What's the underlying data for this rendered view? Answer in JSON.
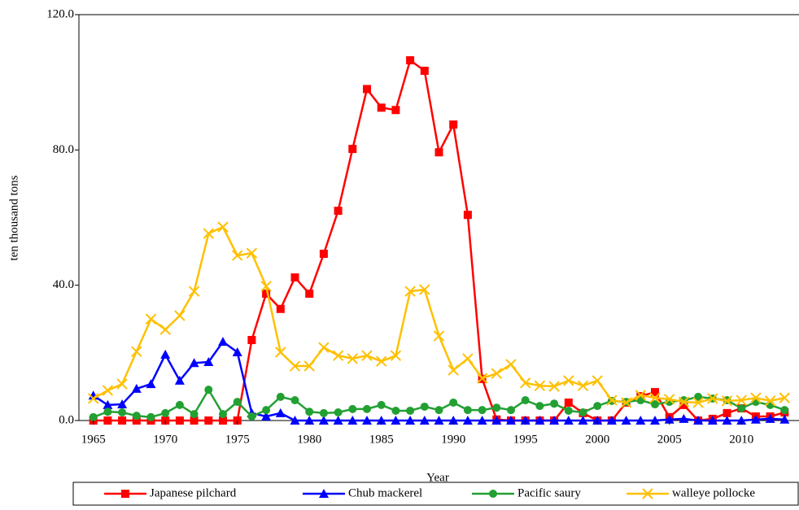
{
  "chart_data": {
    "type": "line",
    "x_label": "Year",
    "y_label": "ten thousand tons",
    "x": [
      1965,
      1966,
      1967,
      1968,
      1969,
      1970,
      1971,
      1972,
      1973,
      1974,
      1975,
      1976,
      1977,
      1978,
      1979,
      1980,
      1981,
      1982,
      1983,
      1984,
      1985,
      1986,
      1987,
      1988,
      1989,
      1990,
      1991,
      1992,
      1993,
      1994,
      1995,
      1996,
      1997,
      1998,
      1999,
      2000,
      2001,
      2002,
      2003,
      2004,
      2005,
      2006,
      2007,
      2008,
      2009,
      2010,
      2011,
      2012,
      2013
    ],
    "xlim": [
      1964,
      2014
    ],
    "xticks": [
      1965,
      1970,
      1975,
      1980,
      1985,
      1990,
      1995,
      2000,
      2005,
      2010
    ],
    "ylim": [
      0,
      120
    ],
    "yticks": [
      {
        "value": 0,
        "label": "0.0"
      },
      {
        "value": 40,
        "label": "40.0"
      },
      {
        "value": 80,
        "label": "80.0"
      },
      {
        "value": 120,
        "label": "120.0"
      }
    ],
    "grid": false,
    "legend": "bottom",
    "series": [
      {
        "name": "Japanese pilchard",
        "color": "#ff0000",
        "marker": "square",
        "values": [
          0,
          0,
          0,
          0,
          0,
          0,
          0,
          0,
          0,
          0,
          0,
          23.8,
          37.5,
          33,
          42.3,
          37.5,
          49.3,
          62,
          80.3,
          98,
          92.5,
          91.8,
          106.5,
          103.4,
          79.3,
          87.5,
          60.8,
          12.3,
          0.3,
          0,
          0,
          0,
          0,
          5.3,
          2.2,
          0,
          0,
          5.3,
          7.2,
          8.4,
          1,
          4.6,
          0,
          0.5,
          2.2,
          3.6,
          1.2,
          1.2,
          2.4
        ]
      },
      {
        "name": "Chub mackerel",
        "color": "#0000ff",
        "marker": "triangle",
        "values": [
          7.4,
          4.6,
          4.8,
          9.4,
          10.8,
          19.5,
          11.8,
          17,
          17.3,
          23.3,
          20.2,
          2.2,
          1.2,
          2.2,
          0,
          0,
          0,
          0,
          0,
          0,
          0,
          0,
          0,
          0,
          0,
          0,
          0,
          0,
          0,
          0,
          0,
          0,
          0,
          0,
          0,
          0,
          0,
          0,
          0,
          0,
          0.3,
          0.5,
          0,
          0,
          0,
          0,
          0.3,
          0.5,
          0.3
        ]
      },
      {
        "name": "Pacific saury",
        "color": "#22a032",
        "marker": "circle",
        "values": [
          1,
          2.6,
          2.4,
          1.4,
          1,
          2.2,
          4.6,
          1.9,
          9.1,
          1.9,
          5.5,
          1.2,
          3.1,
          7,
          6,
          2.6,
          2.2,
          2.4,
          3.4,
          3.4,
          4.6,
          2.9,
          2.9,
          4.1,
          3.1,
          5.3,
          3.1,
          3.1,
          3.8,
          3.1,
          6,
          4.3,
          5,
          2.9,
          2.4,
          4.3,
          5.8,
          5.5,
          6,
          4.8,
          5.5,
          6,
          7,
          6.5,
          6,
          3.6,
          5.5,
          4.6,
          3.1
        ]
      },
      {
        "name": "walleye pollocke",
        "color": "#ffc000",
        "marker": "x",
        "values": [
          6.5,
          8.9,
          10.8,
          20.4,
          30,
          26.9,
          31,
          38.2,
          55.3,
          57.2,
          48.8,
          49.5,
          39.7,
          20.2,
          16.1,
          16.1,
          21.6,
          19.2,
          18.3,
          19.2,
          17.5,
          19.2,
          38.2,
          38.7,
          25,
          14.9,
          18.3,
          12.5,
          13.9,
          16.6,
          11.1,
          10.3,
          10.1,
          11.8,
          10.3,
          11.8,
          6,
          5.3,
          7.5,
          6.7,
          6.3,
          5.5,
          5.3,
          6.5,
          5.8,
          6,
          6.7,
          5.8,
          6.7
        ]
      }
    ]
  }
}
